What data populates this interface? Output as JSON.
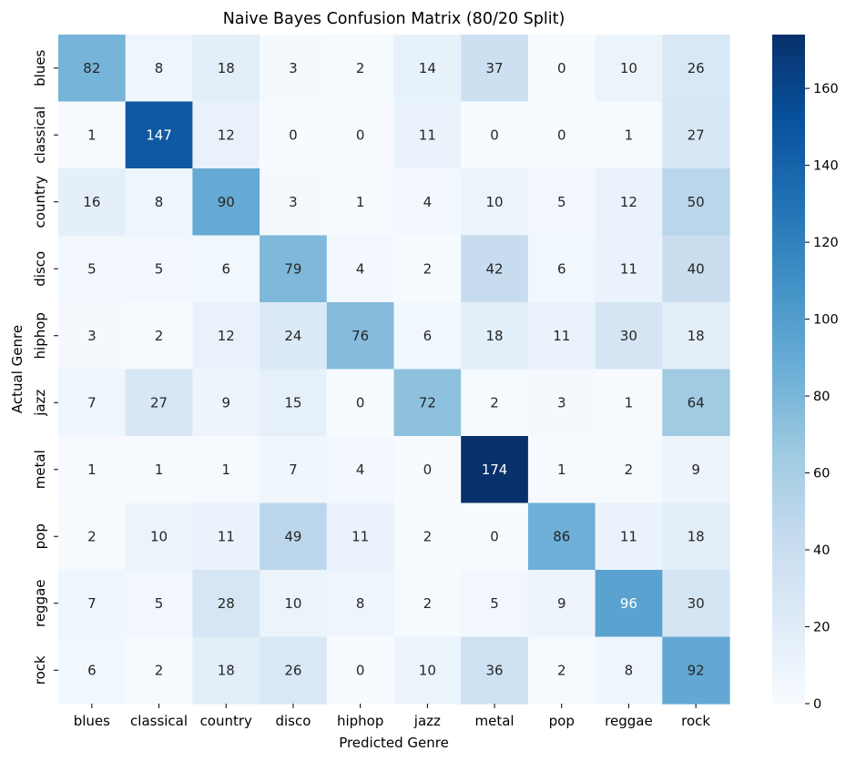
{
  "chart_data": {
    "type": "heatmap",
    "title": "Naive Bayes Confusion Matrix (80/20 Split)",
    "xlabel": "Predicted Genre",
    "ylabel": "Actual Genre",
    "x_categories": [
      "blues",
      "classical",
      "country",
      "disco",
      "hiphop",
      "jazz",
      "metal",
      "pop",
      "reggae",
      "rock"
    ],
    "y_categories": [
      "blues",
      "classical",
      "country",
      "disco",
      "hiphop",
      "jazz",
      "metal",
      "pop",
      "reggae",
      "rock"
    ],
    "values": [
      [
        82,
        8,
        18,
        3,
        2,
        14,
        37,
        0,
        10,
        26
      ],
      [
        1,
        147,
        12,
        0,
        0,
        11,
        0,
        0,
        1,
        27
      ],
      [
        16,
        8,
        90,
        3,
        1,
        4,
        10,
        5,
        12,
        50
      ],
      [
        5,
        5,
        6,
        79,
        4,
        2,
        42,
        6,
        11,
        40
      ],
      [
        3,
        2,
        12,
        24,
        76,
        6,
        18,
        11,
        30,
        18
      ],
      [
        7,
        27,
        9,
        15,
        0,
        72,
        2,
        3,
        1,
        64
      ],
      [
        1,
        1,
        1,
        7,
        4,
        0,
        174,
        1,
        2,
        9
      ],
      [
        2,
        10,
        11,
        49,
        11,
        2,
        0,
        86,
        11,
        18
      ],
      [
        7,
        5,
        28,
        10,
        8,
        2,
        5,
        9,
        96,
        30
      ],
      [
        6,
        2,
        18,
        26,
        0,
        10,
        36,
        2,
        8,
        92
      ]
    ],
    "colormap": "Blues",
    "colorbar": {
      "vmin": 0,
      "vmax": 174,
      "ticks": [
        0,
        20,
        40,
        60,
        80,
        100,
        120,
        140,
        160
      ]
    },
    "grid": false,
    "legend": "colorbar-right"
  }
}
